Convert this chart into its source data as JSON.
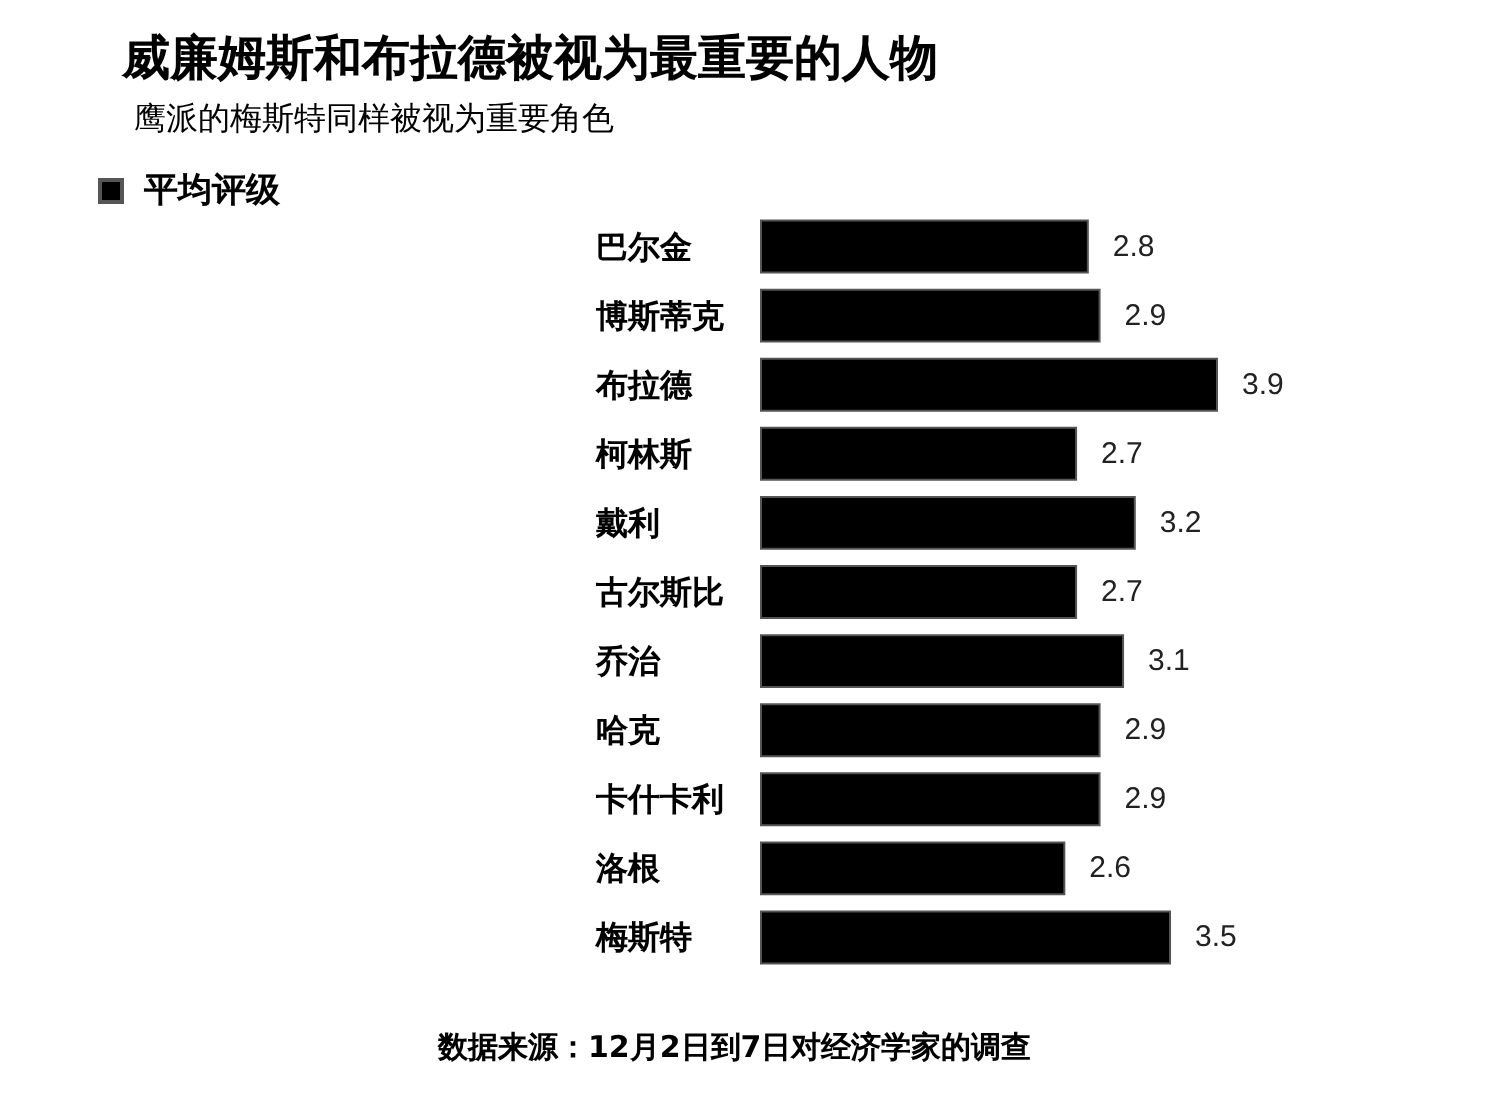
{
  "chart_data": {
    "type": "bar",
    "orientation": "horizontal",
    "title": "威廉姆斯和布拉德被视为最重要的人物",
    "subtitle": "鹰派的梅斯特同样被视为重要角色",
    "categories": [
      "巴尔金",
      "博斯蒂克",
      "布拉德",
      "柯林斯",
      "戴利",
      "古尔斯比",
      "乔治",
      "哈克",
      "卡什卡利",
      "洛根",
      "梅斯特"
    ],
    "series": [
      {
        "name": "平均评级",
        "color": "#000000",
        "values": [
          2.8,
          2.9,
          3.9,
          2.7,
          3.2,
          2.7,
          3.1,
          2.9,
          2.9,
          2.6,
          3.5
        ]
      }
    ],
    "data_labels": true,
    "legend": "top left",
    "annotations": [
      "数据来源：12月2日到7日对经济学家的调查"
    ]
  }
}
